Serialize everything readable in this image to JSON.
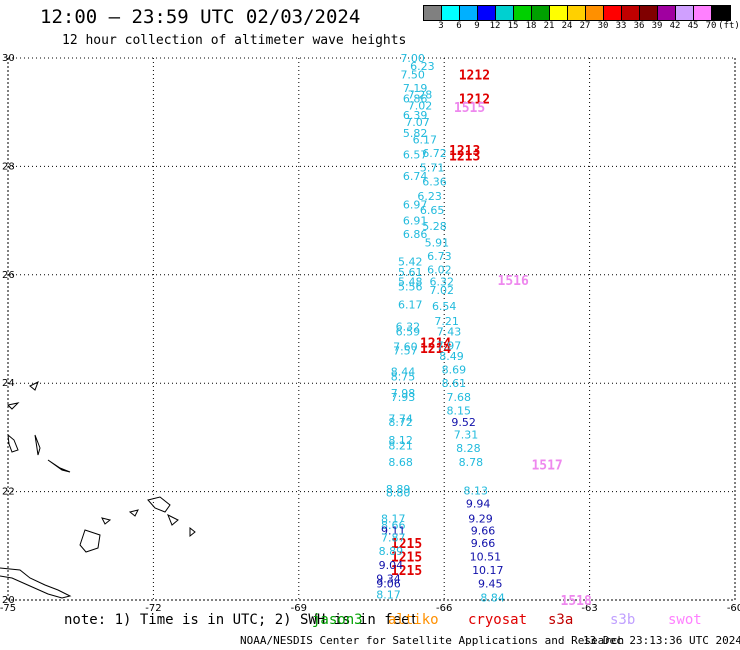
{
  "title": "12:00 – 23:59 UTC 02/03/2024",
  "subtitle": "12 hour collection of altimeter wave heights",
  "colorbar": {
    "colors": [
      "#808080",
      "#00ffff",
      "#00b0ff",
      "#0000ff",
      "#00d0d0",
      "#00d000",
      "#00a000",
      "#ffff00",
      "#ffd000",
      "#ff9000",
      "#ff0000",
      "#c00000",
      "#800000",
      "#a000a0",
      "#d0a0ff",
      "#ff80ff",
      "#000000"
    ],
    "labels": [
      "3",
      "6",
      "9",
      "12",
      "15",
      "18",
      "21",
      "24",
      "27",
      "30",
      "33",
      "36",
      "39",
      "42",
      "45",
      "70",
      "(ft)"
    ]
  },
  "chart_data": {
    "type": "scatter",
    "xlim": [
      -75,
      -60
    ],
    "ylim": [
      20,
      30
    ],
    "x_ticks": [
      "-75",
      "-72",
      "-69",
      "-66",
      "-63",
      "-60"
    ],
    "y_ticks": [
      "30",
      "28",
      "26",
      "24",
      "22",
      "20"
    ],
    "grid": true,
    "tracks": [
      {
        "time": "1212",
        "color": "#e00000",
        "label_at": [
          -65.7,
          29.7
        ]
      },
      {
        "time": "1212",
        "color": "#e00000",
        "label_at": [
          -65.7,
          29.25
        ]
      },
      {
        "time": "1515",
        "color": "#ee88ee",
        "label_at": [
          -65.8,
          29.1
        ]
      },
      {
        "time": "1213",
        "color": "#e00000",
        "label_at": [
          -65.9,
          28.3
        ]
      },
      {
        "time": "1213",
        "color": "#e00000",
        "label_at": [
          -65.9,
          28.2
        ]
      },
      {
        "time": "1516",
        "color": "#ee88ee",
        "label_at": [
          -64.9,
          25.9
        ]
      },
      {
        "time": "1214",
        "color": "#e00000",
        "label_at": [
          -66.5,
          24.75
        ]
      },
      {
        "time": "1214",
        "color": "#e00000",
        "label_at": [
          -66.5,
          24.65
        ]
      },
      {
        "time": "1517",
        "color": "#ee88ee",
        "label_at": [
          -64.2,
          22.5
        ]
      },
      {
        "time": "1215",
        "color": "#e00000",
        "label_at": [
          -67.1,
          21.05
        ]
      },
      {
        "time": "1215",
        "color": "#e00000",
        "label_at": [
          -67.1,
          20.8
        ]
      },
      {
        "time": "1215",
        "color": "#e00000",
        "label_at": [
          -67.1,
          20.55
        ]
      },
      {
        "time": "1518",
        "color": "#ee88ee",
        "label_at": [
          -63.6,
          20.0
        ]
      }
    ],
    "points": [
      {
        "x": -66.65,
        "y": 30.0,
        "v": "7.00",
        "c": "#22bbdd"
      },
      {
        "x": -66.45,
        "y": 29.85,
        "v": "6.23",
        "c": "#22bbdd"
      },
      {
        "x": -66.65,
        "y": 29.7,
        "v": "7.50",
        "c": "#22bbdd"
      },
      {
        "x": -66.6,
        "y": 29.45,
        "v": "7.19",
        "c": "#22bbdd"
      },
      {
        "x": -66.5,
        "y": 29.33,
        "v": "7.28",
        "c": "#22bbdd"
      },
      {
        "x": -66.6,
        "y": 29.25,
        "v": "6.86",
        "c": "#22bbdd"
      },
      {
        "x": -66.5,
        "y": 29.12,
        "v": "7.02",
        "c": "#22bbdd"
      },
      {
        "x": -66.6,
        "y": 28.95,
        "v": "6.39",
        "c": "#22bbdd"
      },
      {
        "x": -66.55,
        "y": 28.82,
        "v": "7.07",
        "c": "#22bbdd"
      },
      {
        "x": -66.6,
        "y": 28.62,
        "v": "5.82",
        "c": "#22bbdd"
      },
      {
        "x": -66.4,
        "y": 28.5,
        "v": "6.17",
        "c": "#22bbdd"
      },
      {
        "x": -66.2,
        "y": 28.25,
        "v": "6.72",
        "c": "#22bbdd"
      },
      {
        "x": -66.6,
        "y": 28.22,
        "v": "6.57",
        "c": "#22bbdd"
      },
      {
        "x": -66.25,
        "y": 27.98,
        "v": "5.71",
        "c": "#22bbdd"
      },
      {
        "x": -66.6,
        "y": 27.82,
        "v": "6.74",
        "c": "#22bbdd"
      },
      {
        "x": -66.2,
        "y": 27.72,
        "v": "6.36",
        "c": "#22bbdd"
      },
      {
        "x": -66.3,
        "y": 27.45,
        "v": "6.23",
        "c": "#22bbdd"
      },
      {
        "x": -66.6,
        "y": 27.3,
        "v": "6.97",
        "c": "#22bbdd"
      },
      {
        "x": -66.25,
        "y": 27.2,
        "v": "6.65",
        "c": "#22bbdd"
      },
      {
        "x": -66.6,
        "y": 27.0,
        "v": "6.91",
        "c": "#22bbdd"
      },
      {
        "x": -66.2,
        "y": 26.9,
        "v": "5.28",
        "c": "#22bbdd"
      },
      {
        "x": -66.6,
        "y": 26.75,
        "v": "6.86",
        "c": "#22bbdd"
      },
      {
        "x": -66.15,
        "y": 26.6,
        "v": "5.91",
        "c": "#22bbdd"
      },
      {
        "x": -66.1,
        "y": 26.35,
        "v": "6.73",
        "c": "#22bbdd"
      },
      {
        "x": -66.7,
        "y": 26.25,
        "v": "5.42",
        "c": "#22bbdd"
      },
      {
        "x": -66.1,
        "y": 26.1,
        "v": "6.02",
        "c": "#22bbdd"
      },
      {
        "x": -66.7,
        "y": 26.05,
        "v": "5.61",
        "c": "#22bbdd"
      },
      {
        "x": -66.7,
        "y": 25.88,
        "v": "5.48",
        "c": "#22bbdd"
      },
      {
        "x": -66.05,
        "y": 25.88,
        "v": "6.32",
        "c": "#22bbdd"
      },
      {
        "x": -66.7,
        "y": 25.78,
        "v": "5.56",
        "c": "#22bbdd"
      },
      {
        "x": -66.05,
        "y": 25.72,
        "v": "7.02",
        "c": "#22bbdd"
      },
      {
        "x": -66.7,
        "y": 25.45,
        "v": "6.17",
        "c": "#22bbdd"
      },
      {
        "x": -66.0,
        "y": 25.42,
        "v": "6.54",
        "c": "#22bbdd"
      },
      {
        "x": -65.95,
        "y": 25.15,
        "v": "7.21",
        "c": "#22bbdd"
      },
      {
        "x": -66.75,
        "y": 25.05,
        "v": "6.32",
        "c": "#22bbdd"
      },
      {
        "x": -66.75,
        "y": 24.95,
        "v": "6.59",
        "c": "#22bbdd"
      },
      {
        "x": -65.9,
        "y": 24.95,
        "v": "7.43",
        "c": "#22bbdd"
      },
      {
        "x": -65.9,
        "y": 24.7,
        "v": "7.97",
        "c": "#22bbdd"
      },
      {
        "x": -66.8,
        "y": 24.68,
        "v": "7.60",
        "c": "#22bbdd"
      },
      {
        "x": -66.8,
        "y": 24.6,
        "v": "7.57",
        "c": "#22bbdd"
      },
      {
        "x": -65.85,
        "y": 24.5,
        "v": "8.49",
        "c": "#22bbdd"
      },
      {
        "x": -65.8,
        "y": 24.25,
        "v": "8.69",
        "c": "#22bbdd"
      },
      {
        "x": -66.85,
        "y": 24.22,
        "v": "8.44",
        "c": "#22bbdd"
      },
      {
        "x": -66.85,
        "y": 24.12,
        "v": "8.75",
        "c": "#22bbdd"
      },
      {
        "x": -65.8,
        "y": 24.0,
        "v": "8.61",
        "c": "#22bbdd"
      },
      {
        "x": -66.85,
        "y": 23.82,
        "v": "7.98",
        "c": "#22bbdd"
      },
      {
        "x": -66.85,
        "y": 23.75,
        "v": "7.93",
        "c": "#22bbdd"
      },
      {
        "x": -65.7,
        "y": 23.75,
        "v": "7.68",
        "c": "#22bbdd"
      },
      {
        "x": -65.7,
        "y": 23.5,
        "v": "8.15",
        "c": "#22bbdd"
      },
      {
        "x": -66.9,
        "y": 23.35,
        "v": "7.74",
        "c": "#22bbdd"
      },
      {
        "x": -65.6,
        "y": 23.28,
        "v": "9.52",
        "c": "#1010aa"
      },
      {
        "x": -66.9,
        "y": 23.28,
        "v": "8.72",
        "c": "#22bbdd"
      },
      {
        "x": -65.55,
        "y": 23.05,
        "v": "7.31",
        "c": "#22bbdd"
      },
      {
        "x": -66.9,
        "y": 22.95,
        "v": "8.12",
        "c": "#22bbdd"
      },
      {
        "x": -66.9,
        "y": 22.85,
        "v": "8.21",
        "c": "#22bbdd"
      },
      {
        "x": -65.5,
        "y": 22.8,
        "v": "8.28",
        "c": "#22bbdd"
      },
      {
        "x": -66.9,
        "y": 22.55,
        "v": "8.68",
        "c": "#22bbdd"
      },
      {
        "x": -65.45,
        "y": 22.55,
        "v": "8.78",
        "c": "#22bbdd"
      },
      {
        "x": -66.95,
        "y": 22.05,
        "v": "8.89",
        "c": "#22bbdd"
      },
      {
        "x": -66.95,
        "y": 21.98,
        "v": "8.80",
        "c": "#22bbdd"
      },
      {
        "x": -65.35,
        "y": 22.02,
        "v": "8.13",
        "c": "#22bbdd"
      },
      {
        "x": -65.3,
        "y": 21.78,
        "v": "9.94",
        "c": "#1010aa"
      },
      {
        "x": -67.05,
        "y": 21.5,
        "v": "8.17",
        "c": "#22bbdd"
      },
      {
        "x": -65.25,
        "y": 21.5,
        "v": "9.29",
        "c": "#1010aa"
      },
      {
        "x": -67.05,
        "y": 21.38,
        "v": "8.66",
        "c": "#22bbdd"
      },
      {
        "x": -67.05,
        "y": 21.28,
        "v": "9.11",
        "c": "#1010aa"
      },
      {
        "x": -65.2,
        "y": 21.28,
        "v": "9.66",
        "c": "#1010aa"
      },
      {
        "x": -67.05,
        "y": 21.15,
        "v": "7.87",
        "c": "#22bbdd"
      },
      {
        "x": -65.2,
        "y": 21.05,
        "v": "9.66",
        "c": "#1010aa"
      },
      {
        "x": -67.1,
        "y": 20.9,
        "v": "8.89",
        "c": "#22bbdd"
      },
      {
        "x": -65.15,
        "y": 20.8,
        "v": "10.51",
        "c": "#1010aa"
      },
      {
        "x": -67.1,
        "y": 20.65,
        "v": "9.04",
        "c": "#1010aa"
      },
      {
        "x": -65.1,
        "y": 20.55,
        "v": "10.17",
        "c": "#1010aa"
      },
      {
        "x": -67.15,
        "y": 20.4,
        "v": "9.34",
        "c": "#1010aa"
      },
      {
        "x": -67.15,
        "y": 20.3,
        "v": "9.06",
        "c": "#1010aa"
      },
      {
        "x": -65.05,
        "y": 20.3,
        "v": "9.45",
        "c": "#1010aa"
      },
      {
        "x": -67.15,
        "y": 20.1,
        "v": "8.17",
        "c": "#22bbdd"
      },
      {
        "x": -65.0,
        "y": 20.05,
        "v": "8.84",
        "c": "#22bbdd"
      }
    ]
  },
  "note": "note: 1) Time is in UTC; 2) SWH is in feet",
  "legend": [
    {
      "label": "jason3",
      "color": "#00a000"
    },
    {
      "label": "altiko",
      "color": "#ff9000"
    },
    {
      "label": "cryosat",
      "color": "#e00000"
    },
    {
      "label": "s3a",
      "color": "#c00000"
    },
    {
      "label": "s3b",
      "color": "#c0a0ff"
    },
    {
      "label": "swot",
      "color": "#ff80ff"
    }
  ],
  "credit": "NOAA/NESDIS Center for Satellite Applications and Research",
  "credit_timestamp": "13 Dec 23:13:36 UTC 2024"
}
